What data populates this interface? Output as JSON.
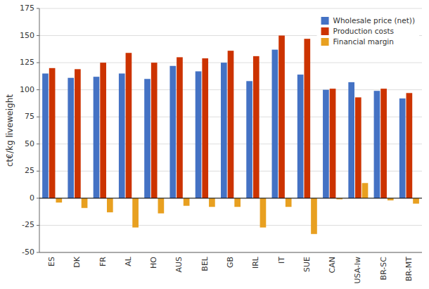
{
  "chart_data": {
    "type": "bar",
    "categories": [
      "ES",
      "DK",
      "FR",
      "AL",
      "HO",
      "AUS",
      "BEL",
      "GB",
      "IRL",
      "IT",
      "SUE",
      "CAN",
      "USA-lw",
      "BR-SC",
      "BR-MT"
    ],
    "series": [
      {
        "name": "Wholesale price (net))",
        "color": "#4472C4",
        "values": [
          115,
          111,
          112,
          115,
          110,
          122,
          117,
          125,
          108,
          137,
          114,
          100,
          107,
          99,
          92
        ]
      },
      {
        "name": "Production costs",
        "color": "#CC3300",
        "values": [
          120,
          119,
          125,
          134,
          125,
          130,
          129,
          136,
          131,
          150,
          147,
          101,
          93,
          101,
          97
        ]
      },
      {
        "name": "Financial margin",
        "color": "#E8A020",
        "values": [
          -4,
          -9,
          -13,
          -27,
          -14,
          -7,
          -8,
          -8,
          -27,
          -8,
          -33,
          -1,
          14,
          -2,
          -5
        ]
      }
    ],
    "ylabel": "ct€/kg liveweight",
    "ylim": [
      -50,
      175
    ],
    "yticks": [
      -50,
      -25,
      0,
      25,
      50,
      75,
      100,
      125,
      150,
      175
    ],
    "grid": true,
    "legend": "upper right"
  }
}
